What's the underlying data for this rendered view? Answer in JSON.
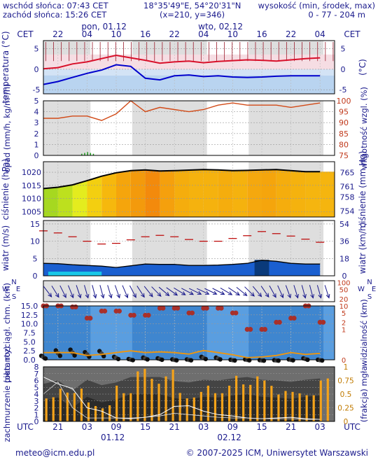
{
  "header": {
    "sunrise": "wschód słońca: 07:43 CET",
    "sunset": "zachód słońca: 15:26 CET",
    "coords": "18°35'49\"E, 54°20'31\"N",
    "grid": "(x=210,  y=346)",
    "elev_label": "wysokość (min, środek, max)",
    "elev_values": "0 - 77 - 204 m"
  },
  "timebar": {
    "tz_top": "CET",
    "tz_bottom": "UTC",
    "top_hours": [
      "22",
      "04",
      "10",
      "16",
      "22",
      "04",
      "10",
      "16",
      "22",
      "04"
    ],
    "top_dates": [
      "pon, 01.12",
      "wto, 02.12"
    ],
    "bottom_hours": [
      "21",
      "03",
      "09",
      "15",
      "21",
      "03",
      "09",
      "15",
      "21",
      "03"
    ],
    "bottom_dates": [
      "01.12",
      "02.12"
    ]
  },
  "footer": {
    "email": "meteo@icm.edu.pl",
    "copyright": "© 2007-2025 ICM, Uniwersytet Warszawski"
  },
  "colors": {
    "text": "#1a1a8c",
    "night": "#e6e6e6",
    "grid": "#999999",
    "redline": "#d8102a",
    "blueline": "#0000cc"
  },
  "chart_data": [
    {
      "type": "line",
      "panel": "temperature",
      "ylabel_left": "temperatura (°C)",
      "ylabel_right": "(°C)",
      "ylim": [
        -6,
        7
      ],
      "yticks": [
        -5,
        0,
        5
      ],
      "x_hours": [
        0,
        3,
        6,
        9,
        12,
        15,
        18,
        21,
        24,
        27,
        30,
        33,
        36,
        39,
        42,
        45,
        48,
        51,
        54,
        57
      ],
      "series": [
        {
          "values": [
            0.1,
            0.4,
            1.3,
            1.8,
            2.6,
            3.4,
            2.8,
            2.2,
            1.5,
            1.8,
            2.0,
            1.6,
            1.9,
            2.1,
            2.3,
            2.2,
            2.0,
            2.3,
            2.6,
            2.8
          ]
        },
        {
          "values": [
            -3.7,
            -3.0,
            -2.0,
            -1.0,
            -0.2,
            1.1,
            0.7,
            -2.2,
            -2.6,
            -1.6,
            -1.4,
            -1.8,
            -1.6,
            -1.9,
            -2.0,
            -1.9,
            -1.7,
            -1.6,
            -1.6,
            -1.6
          ]
        }
      ]
    },
    {
      "type": "line",
      "panel": "precipitation_humidity",
      "ylabel_left": "opad (mm/h, kg/m²/h)",
      "ylabel_right": "wilgotność wzgl. (%)",
      "left_yticks": [
        0,
        1,
        2,
        3,
        4,
        5
      ],
      "right_yticks": [
        75,
        80,
        85,
        90,
        95,
        100
      ],
      "ylim_left": [
        0,
        5
      ],
      "ylim_right": [
        75,
        100
      ],
      "x_hours": [
        0,
        3,
        6,
        9,
        12,
        15,
        18,
        21,
        24,
        27,
        30,
        33,
        36,
        39,
        42,
        45,
        48,
        51,
        54,
        57
      ],
      "humidity": [
        92,
        92,
        93,
        93,
        91,
        94,
        100,
        95,
        97,
        96,
        95,
        96,
        98,
        99,
        98,
        98,
        98,
        97,
        98,
        99
      ],
      "precip": [
        0,
        0,
        0,
        0.3,
        0,
        0,
        0,
        0,
        0,
        0,
        0,
        0,
        0,
        0,
        0,
        0,
        0,
        0,
        0,
        0
      ]
    },
    {
      "type": "area",
      "panel": "pressure",
      "ylabel_left": "ciśnienie (hPa)",
      "ylabel_right": "ciśnienie (mm Hg)",
      "left_yticks": [
        1005,
        1010,
        1015,
        1020
      ],
      "right_yticks": [
        754,
        758,
        761,
        765
      ],
      "ylim": [
        1003,
        1024
      ],
      "x_hours": [
        0,
        3,
        6,
        9,
        12,
        15,
        18,
        21,
        24,
        27,
        30,
        33,
        36,
        39,
        42,
        45,
        48,
        51,
        54,
        57
      ],
      "values": [
        1013.8,
        1014.3,
        1015.2,
        1016.8,
        1018.5,
        1019.8,
        1020.6,
        1020.9,
        1020.5,
        1020.6,
        1020.8,
        1021.0,
        1020.9,
        1020.6,
        1020.7,
        1020.9,
        1021.0,
        1020.6,
        1020.2,
        1020.2
      ]
    },
    {
      "type": "line",
      "panel": "wind",
      "ylabel_left": "wiatr (m/s)",
      "ylabel_right": "wiatr (km/h)",
      "left_yticks": [
        0,
        5,
        10,
        15
      ],
      "right_yticks": [
        0,
        18,
        36,
        54
      ],
      "ylim": [
        0,
        16
      ],
      "x_hours": [
        0,
        3,
        6,
        9,
        12,
        15,
        18,
        21,
        24,
        27,
        30,
        33,
        36,
        39,
        42,
        45,
        48,
        51,
        54,
        57
      ],
      "gusts": [
        13.0,
        12.4,
        11.3,
        10.0,
        9.2,
        9.4,
        10.4,
        11.3,
        11.7,
        11.3,
        10.5,
        10.0,
        10.0,
        10.8,
        11.6,
        12.8,
        12.2,
        11.5,
        10.6,
        9.7
      ],
      "speed": [
        3.6,
        3.5,
        3.2,
        3.0,
        2.8,
        2.4,
        2.9,
        3.4,
        3.3,
        3.3,
        3.0,
        3.0,
        3.1,
        3.3,
        3.6,
        4.5,
        4.2,
        3.6,
        3.4,
        3.4
      ]
    },
    {
      "type": "line",
      "panel": "visibility",
      "ylabel_left": "pion. rozciągł. chm. (km)",
      "ylabel_right": "widzialność (km)",
      "left_yticks": [
        "0.0",
        "2.5",
        "5.0",
        "7.5",
        "10.0",
        "12.5",
        "15.0"
      ],
      "right_yticks": [
        0,
        1,
        2,
        5,
        10,
        20,
        50,
        100
      ],
      "x_hours": [
        0,
        3,
        6,
        9,
        12,
        15,
        18,
        21,
        24,
        27,
        30,
        33,
        36,
        39,
        42,
        45,
        48,
        51,
        54,
        57
      ],
      "visibility_km": [
        10,
        10,
        9,
        3,
        6,
        6,
        4,
        4,
        8,
        8,
        5,
        8,
        8,
        5,
        1,
        1,
        2,
        3,
        10,
        2
      ],
      "cloud_extent_km": [
        1.5,
        3.0,
        3.2,
        2.5,
        2.8,
        1.2,
        0.6,
        1.0,
        0.8,
        0.5,
        0.5,
        1.2,
        1.0,
        0.4,
        0.5,
        0.3,
        0.3,
        0.5,
        0.8,
        0.4
      ]
    },
    {
      "type": "bar",
      "panel": "cloud_fog",
      "ylabel_left": "zachmurzenie (oktanty)",
      "ylabel_right": "(frakcja) mgła",
      "left_yticks": [
        0,
        1,
        2,
        3,
        4,
        5,
        6,
        7,
        8
      ],
      "right_yticks": [
        "0",
        "0.25",
        "0.5",
        "0.75",
        "1"
      ],
      "x_hours": [
        0,
        3,
        6,
        9,
        12,
        15,
        18,
        21,
        24,
        27,
        30,
        33,
        36,
        39,
        42,
        45,
        48,
        51,
        54,
        57
      ],
      "cloud_okta": [
        7,
        7.5,
        6,
        7.6,
        6.8,
        7.2,
        8,
        8,
        8,
        7.4,
        7.2,
        7.6,
        7.5,
        7.8,
        8,
        7.6,
        7.5,
        7.3,
        7.6,
        7.8
      ],
      "fog_fraction": [
        0.45,
        0.75,
        0.6,
        0.4,
        0.3,
        0.7,
        0.98,
        0.98,
        0.95,
        0.6,
        0.55,
        0.7,
        0.7,
        0.85,
        0.95,
        0.75,
        0.7,
        0.55,
        0.65,
        0.8
      ]
    }
  ]
}
